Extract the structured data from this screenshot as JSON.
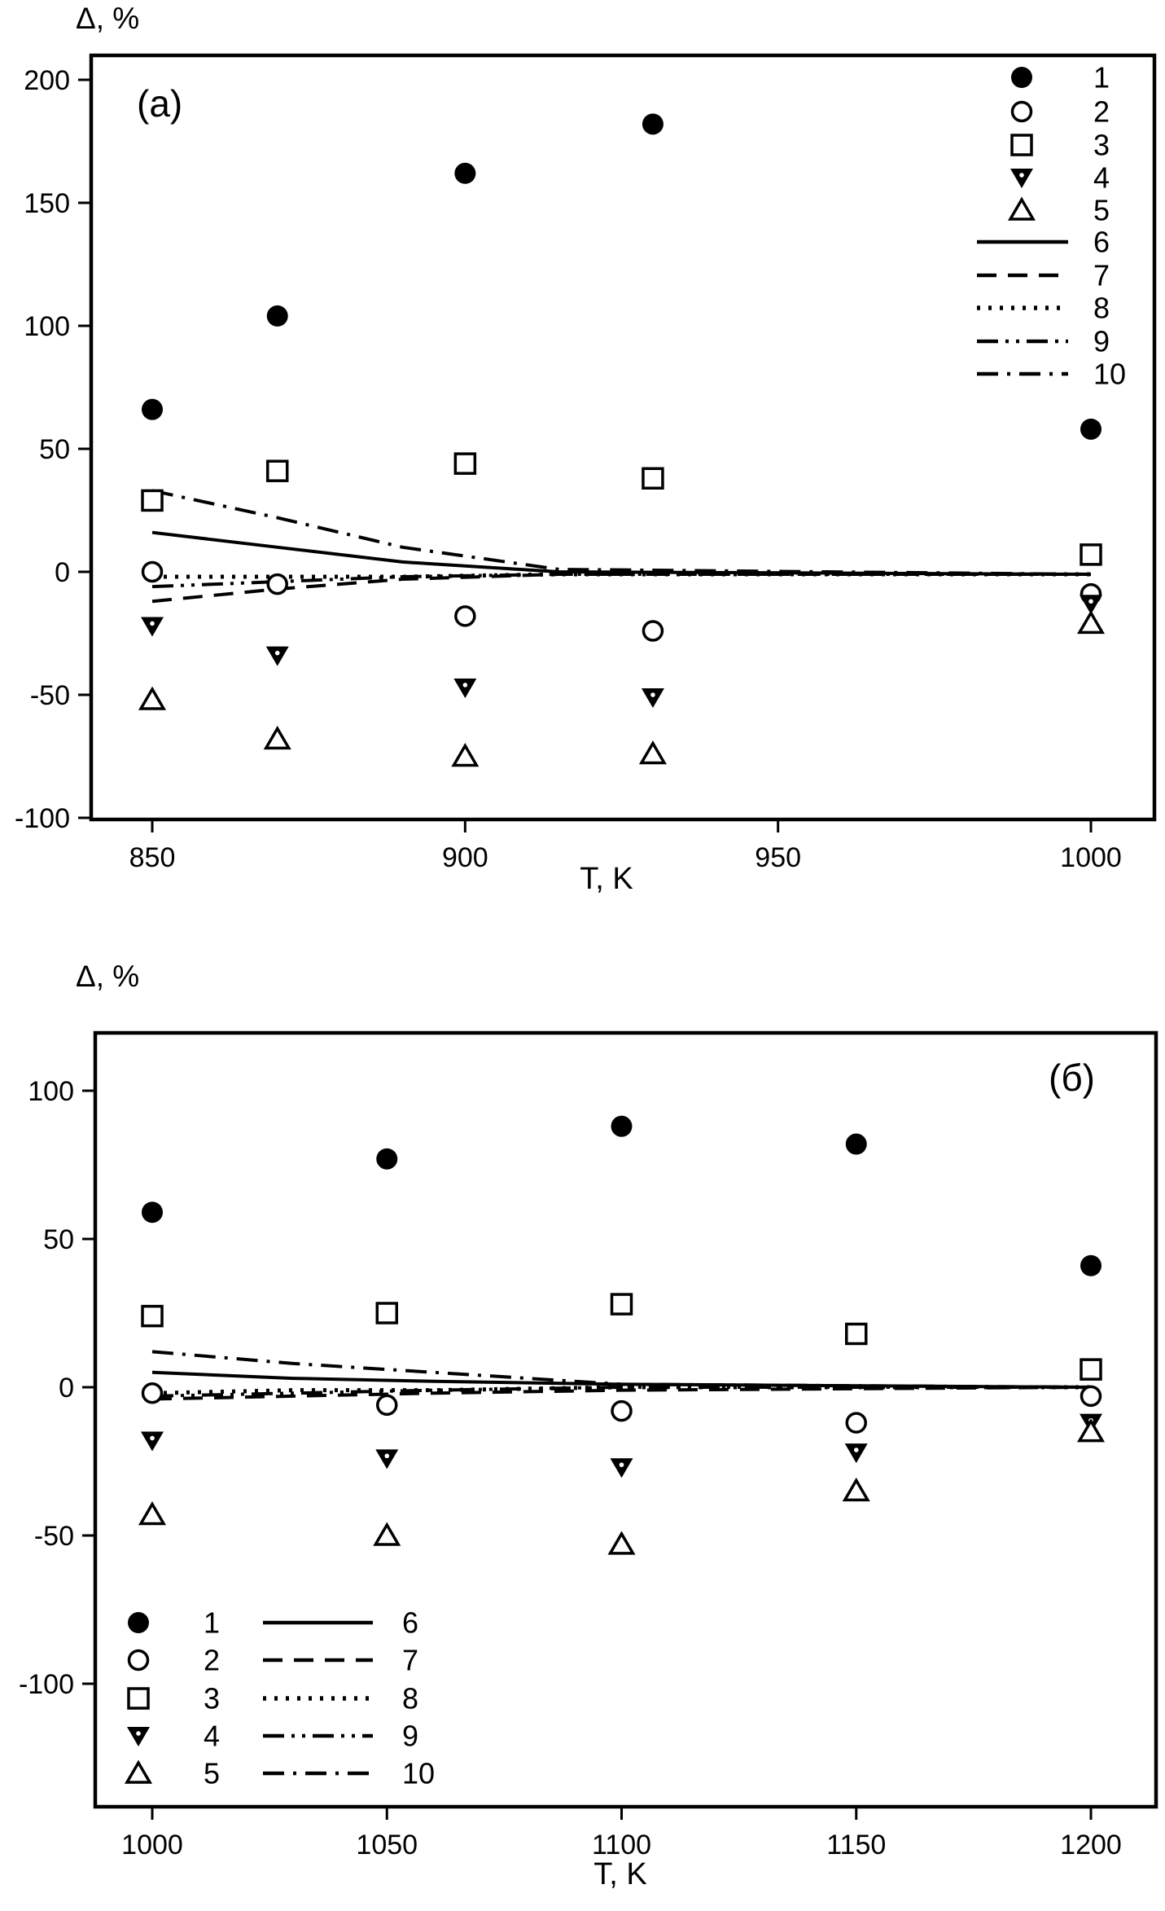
{
  "page": {
    "background": "#ffffff",
    "ink": "#000000"
  },
  "chart_data": [
    {
      "panel_label": "(a)",
      "type": "scatter",
      "xlabel": "T, K",
      "ylabel": "Δ, %",
      "x_ticks": [
        850,
        900,
        950,
        1000
      ],
      "y_ticks": [
        200,
        150,
        100,
        50,
        0,
        -50,
        -100
      ],
      "xlim": [
        840,
        1010
      ],
      "ylim": [
        -110,
        210
      ],
      "grid": false,
      "legend_position": "top-right",
      "x": [
        850,
        870,
        900,
        930,
        1000
      ],
      "scatter_series": [
        {
          "name": "1",
          "marker": "filled-circle",
          "values": [
            66,
            104,
            162,
            182,
            58
          ]
        },
        {
          "name": "2",
          "marker": "open-circle",
          "values": [
            0,
            -5,
            -18,
            -24,
            -9
          ]
        },
        {
          "name": "3",
          "marker": "open-square",
          "values": [
            29,
            41,
            44,
            38,
            7
          ]
        },
        {
          "name": "4",
          "marker": "filled-down-triangle",
          "values": [
            -22,
            -34,
            -47,
            -51,
            -13
          ]
        },
        {
          "name": "5",
          "marker": "open-up-triangle",
          "values": [
            -52,
            -68,
            -75,
            -74,
            -21
          ]
        }
      ],
      "line_series": [
        {
          "name": "6",
          "style": "solid",
          "x": [
            850,
            870,
            890,
            915,
            1000
          ],
          "values": [
            16,
            10,
            4,
            0,
            -1
          ]
        },
        {
          "name": "7",
          "style": "dashed",
          "x": [
            850,
            870,
            890,
            915,
            1000
          ],
          "values": [
            -12,
            -7,
            -3,
            -1,
            -1
          ]
        },
        {
          "name": "8",
          "style": "dotted",
          "x": [
            850,
            870,
            890,
            915,
            1000
          ],
          "values": [
            -2,
            -2,
            -2,
            -1,
            -1
          ]
        },
        {
          "name": "9",
          "style": "dash-dot-dot",
          "x": [
            850,
            870,
            890,
            915,
            1000
          ],
          "values": [
            -6,
            -4,
            -2,
            -1,
            -1
          ]
        },
        {
          "name": "10",
          "style": "dash-dot",
          "x": [
            850,
            870,
            890,
            915,
            1000
          ],
          "values": [
            33,
            22,
            10,
            1,
            -1
          ]
        }
      ]
    },
    {
      "panel_label": "(б)",
      "type": "scatter",
      "xlabel": "T, K",
      "ylabel": "Δ, %",
      "x_ticks": [
        1000,
        1050,
        1100,
        1150,
        1200
      ],
      "y_ticks": [
        100,
        50,
        0,
        -50,
        -100
      ],
      "xlim": [
        988,
        1214
      ],
      "ylim": [
        -141,
        119
      ],
      "grid": false,
      "legend_position": "bottom-left",
      "x": [
        1000,
        1050,
        1100,
        1150,
        1200
      ],
      "scatter_series": [
        {
          "name": "1",
          "marker": "filled-circle",
          "values": [
            59,
            77,
            88,
            82,
            41
          ]
        },
        {
          "name": "2",
          "marker": "open-circle",
          "values": [
            -2,
            -6,
            -8,
            -12,
            -3
          ]
        },
        {
          "name": "3",
          "marker": "open-square",
          "values": [
            24,
            25,
            28,
            18,
            6
          ]
        },
        {
          "name": "4",
          "marker": "filled-down-triangle",
          "values": [
            -18,
            -24,
            -27,
            -22,
            -12
          ]
        },
        {
          "name": "5",
          "marker": "open-up-triangle",
          "values": [
            -43,
            -50,
            -53,
            -35,
            -15
          ]
        }
      ],
      "line_series": [
        {
          "name": "6",
          "style": "solid",
          "x": [
            1000,
            1030,
            1060,
            1100,
            1200
          ],
          "values": [
            5,
            3,
            2,
            1,
            0
          ]
        },
        {
          "name": "7",
          "style": "dashed",
          "x": [
            1000,
            1030,
            1060,
            1100,
            1200
          ],
          "values": [
            -4,
            -3,
            -2,
            -1,
            0
          ]
        },
        {
          "name": "8",
          "style": "dotted",
          "x": [
            1000,
            1030,
            1060,
            1100,
            1200
          ],
          "values": [
            -2,
            -1,
            -1,
            0,
            0
          ]
        },
        {
          "name": "9",
          "style": "dash-dot-dot",
          "x": [
            1000,
            1030,
            1060,
            1100,
            1200
          ],
          "values": [
            -3,
            -2,
            -1,
            0,
            0
          ]
        },
        {
          "name": "10",
          "style": "dash-dot",
          "x": [
            1000,
            1030,
            1060,
            1100,
            1200
          ],
          "values": [
            12,
            8,
            5,
            1,
            0
          ]
        }
      ]
    }
  ]
}
